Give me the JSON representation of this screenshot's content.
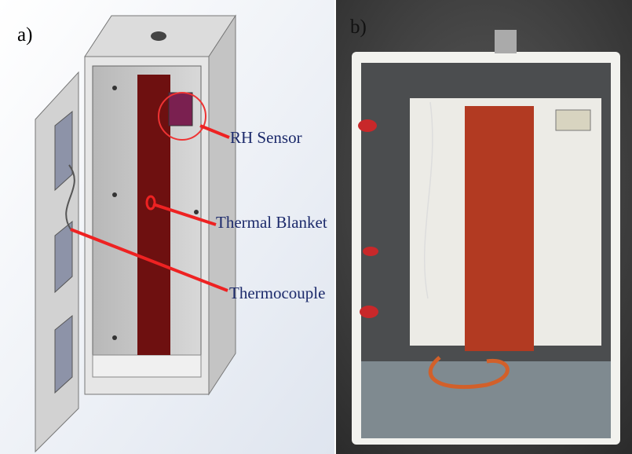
{
  "panels": [
    {
      "label": "a)",
      "annotations": [
        "RH Sensor",
        "Thermal Blanket",
        "Thermocouple"
      ]
    },
    {
      "label": "b)"
    }
  ]
}
